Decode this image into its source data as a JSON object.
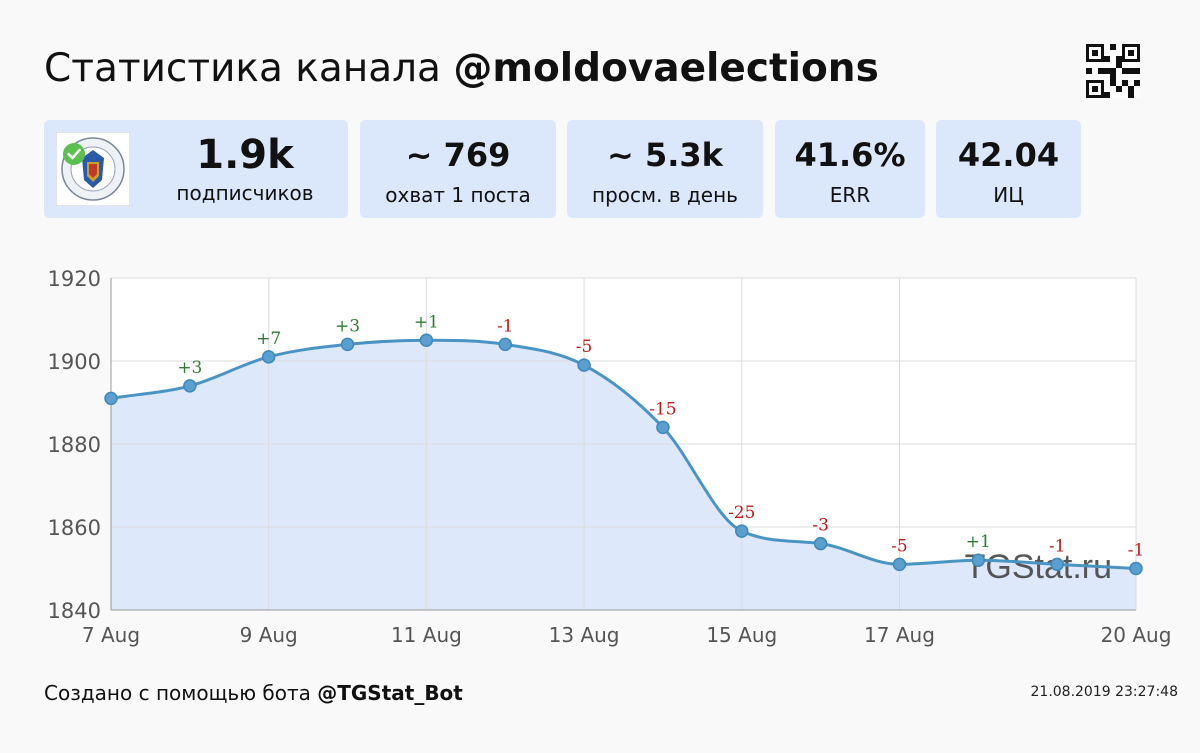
{
  "header": {
    "title_prefix": "Статистика канала ",
    "title_channel": "@moldovaelections"
  },
  "stats": [
    {
      "value": "1.9k",
      "label": "подписчиков"
    },
    {
      "value": "~ 769",
      "label": "охват 1 поста"
    },
    {
      "value": "~ 5.3k",
      "label": "просм. в день"
    },
    {
      "value": "41.6%",
      "label": "ERR"
    },
    {
      "value": "42.04",
      "label": "ИЦ"
    }
  ],
  "avatar": {
    "icon": "election-commission-seal-icon",
    "badge": "verified-check-icon"
  },
  "qr_icon": "qr-code-icon",
  "chart_data": {
    "type": "area",
    "x": [
      "7 Aug",
      "8 Aug",
      "9 Aug",
      "10 Aug",
      "11 Aug",
      "12 Aug",
      "13 Aug",
      "14 Aug",
      "15 Aug",
      "16 Aug",
      "17 Aug",
      "18 Aug",
      "19 Aug",
      "20 Aug"
    ],
    "xtick_labels": [
      "7 Aug",
      "9 Aug",
      "11 Aug",
      "13 Aug",
      "15 Aug",
      "17 Aug",
      "20 Aug"
    ],
    "xtick_indices": [
      0,
      2,
      4,
      6,
      8,
      10,
      13
    ],
    "series": [
      {
        "values": [
          1891,
          1894,
          1901,
          1904,
          1905,
          1904,
          1899,
          1884,
          1859,
          1856,
          1851,
          1852,
          1851,
          1850
        ]
      }
    ],
    "annotations": [
      "",
      "+3",
      "+7",
      "+3",
      "+1",
      "-1",
      "-5",
      "-15",
      "-25",
      "-3",
      "-5",
      "+1",
      "-1",
      "-1"
    ],
    "ylim": [
      1840,
      1920
    ],
    "yticks": [
      1840,
      1860,
      1880,
      1900,
      1920
    ],
    "grid": true,
    "watermark": "TGStat.ru",
    "colors": {
      "line": "#4a94c4",
      "fill": "#dde8fb",
      "positive": "#2e7d32",
      "negative": "#b71c1c",
      "grid": "#dcdcdc"
    }
  },
  "footer": {
    "created_prefix": "Создано с помощью бота ",
    "bot": "@TGStat_Bot",
    "timestamp": "21.08.2019 23:27:48"
  }
}
